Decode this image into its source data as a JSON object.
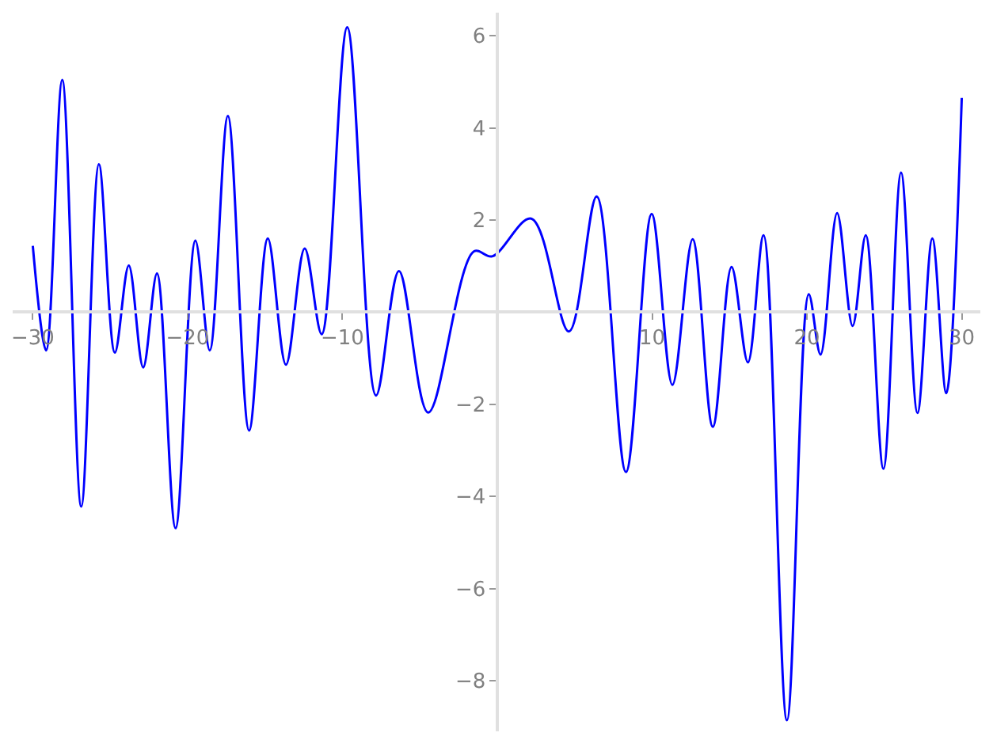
{
  "chart_data": {
    "type": "line",
    "marker": "none",
    "line_style": "solid",
    "xlim": [
      -31.3,
      31.2
    ],
    "ylim": [
      -9.1,
      6.5
    ],
    "xticks": [
      -30,
      -20,
      -10,
      10,
      20,
      30
    ],
    "yticks": [
      -8,
      -6,
      -4,
      -2,
      2,
      4,
      6
    ],
    "x": [
      -30,
      -29.14,
      -28.1,
      -26.87,
      -25.73,
      -24.7,
      -23.8,
      -22.87,
      -21.98,
      -20.78,
      -19.5,
      -18.57,
      -17.4,
      -16.03,
      -14.82,
      -13.65,
      -12.44,
      -11.34,
      -9.69,
      -7.83,
      -6.35,
      -4.46,
      -1.5,
      -0.33,
      2.19,
      4.63,
      6.42,
      8.31,
      9.97,
      11.31,
      12.62,
      13.92,
      15.13,
      16.19,
      17.2,
      18.71,
      20.12,
      20.88,
      21.95,
      22.95,
      23.8,
      24.94,
      26.08,
      27.14,
      28.1,
      29.0,
      30
    ],
    "series": [
      {
        "color": "#0000ff",
        "values": [
          1.44,
          -0.83,
          5.04,
          -4.22,
          3.21,
          -0.88,
          1.01,
          -1.2,
          0.84,
          -4.69,
          1.55,
          -0.83,
          4.26,
          -2.57,
          1.6,
          -1.14,
          1.38,
          -0.48,
          6.18,
          -1.81,
          0.89,
          -2.18,
          1.32,
          1.21,
          2.03,
          -0.42,
          2.51,
          -3.47,
          2.13,
          -1.58,
          1.58,
          -2.49,
          0.98,
          -1.09,
          1.67,
          -8.86,
          0.39,
          -0.92,
          2.15,
          -0.3,
          1.67,
          -3.4,
          3.03,
          -2.19,
          1.6,
          -1.76,
          4.65
        ]
      }
    ]
  }
}
